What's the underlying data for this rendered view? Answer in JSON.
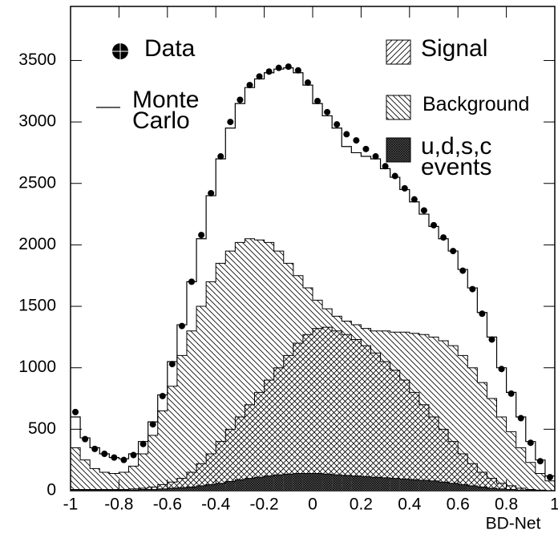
{
  "chart_data": {
    "type": "histogram",
    "x_label": "BD-Net",
    "xlim": [
      -1,
      1
    ],
    "xticks": [
      -1,
      -0.8,
      -0.6,
      -0.4,
      -0.2,
      0,
      0.2,
      0.4,
      0.6,
      0.8,
      1
    ],
    "ylim": [
      0,
      3940
    ],
    "yticks": [
      0,
      500,
      1000,
      1500,
      2000,
      2500,
      3000,
      3500
    ],
    "bins": [
      -1,
      -0.96,
      -0.92,
      -0.88,
      -0.84,
      -0.8,
      -0.76,
      -0.72,
      -0.68,
      -0.64,
      -0.6,
      -0.56,
      -0.52,
      -0.48,
      -0.44,
      -0.4,
      -0.36,
      -0.32,
      -0.28,
      -0.24,
      -0.2,
      -0.16,
      -0.12,
      -0.08,
      -0.04,
      0,
      0.04,
      0.08,
      0.12,
      0.16,
      0.2,
      0.24,
      0.28,
      0.32,
      0.36,
      0.4,
      0.44,
      0.48,
      0.52,
      0.56,
      0.6,
      0.64,
      0.68,
      0.72,
      0.76,
      0.8,
      0.84,
      0.88,
      0.92,
      0.96,
      1
    ],
    "series": [
      {
        "name": "Background",
        "color": "#000000",
        "style": "hatch-backward",
        "values": [
          350,
          250,
          180,
          150,
          140,
          150,
          200,
          300,
          450,
          650,
          850,
          1100,
          1300,
          1500,
          1700,
          1850,
          1950,
          2020,
          2050,
          2040,
          2020,
          1950,
          1850,
          1750,
          1650,
          1550,
          1480,
          1420,
          1380,
          1350,
          1320,
          1300,
          1300,
          1290,
          1290,
          1280,
          1270,
          1250,
          1220,
          1180,
          1100,
          1000,
          880,
          750,
          600,
          480,
          350,
          230,
          140,
          80
        ]
      },
      {
        "name": "Signal",
        "color": "#000000",
        "style": "hatch-forward",
        "values": [
          10,
          10,
          10,
          10,
          10,
          10,
          15,
          20,
          30,
          50,
          70,
          100,
          150,
          220,
          300,
          400,
          500,
          600,
          700,
          800,
          900,
          1000,
          1100,
          1200,
          1270,
          1320,
          1330,
          1300,
          1270,
          1230,
          1180,
          1120,
          1050,
          980,
          900,
          800,
          700,
          600,
          500,
          400,
          300,
          220,
          150,
          100,
          60,
          40,
          20,
          10,
          5,
          0
        ]
      },
      {
        "name": "u,d,s,c events",
        "color": "#000000",
        "style": "hatch-cross",
        "values": [
          5,
          5,
          5,
          5,
          5,
          5,
          5,
          10,
          10,
          15,
          20,
          25,
          30,
          40,
          50,
          60,
          75,
          90,
          100,
          110,
          120,
          130,
          135,
          140,
          140,
          140,
          135,
          130,
          125,
          120,
          115,
          110,
          105,
          100,
          95,
          90,
          85,
          80,
          70,
          60,
          50,
          40,
          30,
          20,
          15,
          10,
          5,
          5,
          0,
          0
        ]
      },
      {
        "name": "Monte Carlo",
        "color": "#000000",
        "style": "step",
        "values": [
          600,
          430,
          350,
          300,
          270,
          260,
          300,
          400,
          560,
          780,
          1050,
          1350,
          1700,
          2050,
          2400,
          2700,
          2950,
          3150,
          3280,
          3350,
          3400,
          3430,
          3440,
          3400,
          3300,
          3150,
          3050,
          2950,
          2800,
          2750,
          2720,
          2700,
          2620,
          2550,
          2450,
          2350,
          2250,
          2150,
          2050,
          1950,
          1800,
          1650,
          1450,
          1250,
          1000,
          800,
          600,
          400,
          250,
          120
        ]
      },
      {
        "name": "Data",
        "color": "#000000",
        "style": "points",
        "values": [
          640,
          420,
          340,
          300,
          270,
          250,
          290,
          380,
          540,
          770,
          1030,
          1340,
          1700,
          2080,
          2420,
          2720,
          3000,
          3180,
          3300,
          3370,
          3410,
          3440,
          3450,
          3420,
          3320,
          3170,
          3080,
          2980,
          2900,
          2850,
          2780,
          2720,
          2640,
          2560,
          2460,
          2370,
          2280,
          2160,
          2060,
          1950,
          1790,
          1640,
          1440,
          1230,
          990,
          790,
          590,
          390,
          240,
          110
        ]
      }
    ]
  }
}
